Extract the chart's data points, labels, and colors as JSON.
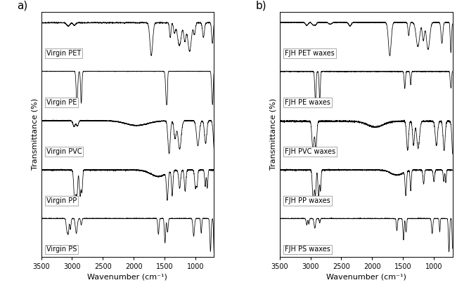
{
  "panel_a_label": "a)",
  "panel_b_label": "b)",
  "xlabel": "Wavenumber (cm⁻¹)",
  "ylabel": "Transmittance (%)",
  "xlim": [
    3500,
    700
  ],
  "xticks": [
    3500,
    3000,
    2500,
    2000,
    1500,
    1000
  ],
  "spectra_a": [
    "Virgin PET",
    "Virgin PE",
    "Virgin PVC",
    "Virgin PP",
    "Virgin PS"
  ],
  "spectra_b": [
    "FJH PET waxes",
    "FJH PE waxes",
    "FJH PVC waxes",
    "FJH PP waxes",
    "FJH PS waxes"
  ],
  "line_color": "#000000",
  "background_color": "#ffffff",
  "fontsize_label": 7,
  "fontsize_axis": 7,
  "fontsize_panel": 11
}
